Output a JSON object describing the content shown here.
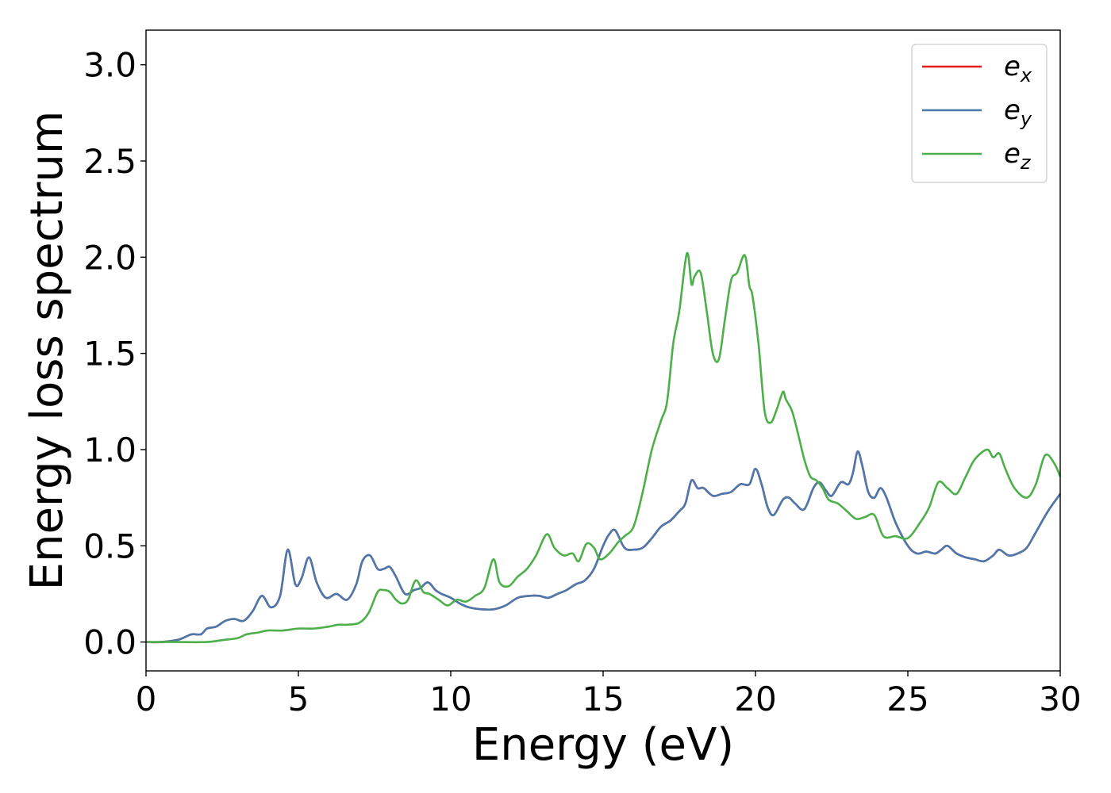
{
  "chart_data": {
    "type": "line",
    "title": "",
    "xlabel": "Energy (eV)",
    "ylabel": "Energy loss spectrum",
    "xlim": [
      0,
      30
    ],
    "ylim": [
      -0.15,
      3.18
    ],
    "xticks": [
      0,
      5,
      10,
      15,
      20,
      25,
      30
    ],
    "xtick_labels": [
      "0",
      "5",
      "10",
      "15",
      "20",
      "25",
      "30"
    ],
    "yticks": [
      0.0,
      0.5,
      1.0,
      1.5,
      2.0,
      2.5,
      3.0
    ],
    "ytick_labels": [
      "0.0",
      "0.5",
      "1.0",
      "1.5",
      "2.0",
      "2.5",
      "3.0"
    ],
    "grid": false,
    "legend_position": "top-right",
    "series": [
      {
        "name": "e_x",
        "legend_base": "e",
        "legend_sub": "x",
        "color": "#e41a1c",
        "x": [
          0,
          0.5,
          1.0,
          1.2,
          1.5,
          1.8,
          2.0,
          2.3,
          2.6,
          2.9,
          3.2,
          3.5,
          3.8,
          4.1,
          4.4,
          4.65,
          4.9,
          5.1,
          5.35,
          5.6,
          5.9,
          6.25,
          6.6,
          6.9,
          7.1,
          7.35,
          7.6,
          7.8,
          8.0,
          8.2,
          8.5,
          8.8,
          9.0,
          9.25,
          9.5,
          9.7,
          10.0,
          10.3,
          10.6,
          11.0,
          11.4,
          11.8,
          12.2,
          12.6,
          12.9,
          13.2,
          13.5,
          13.8,
          14.1,
          14.4,
          14.7,
          15.0,
          15.2,
          15.4,
          15.7,
          16.0,
          16.3,
          16.6,
          16.9,
          17.2,
          17.5,
          17.7,
          17.9,
          18.1,
          18.3,
          18.6,
          18.9,
          19.2,
          19.5,
          19.8,
          20.0,
          20.2,
          20.4,
          20.6,
          20.9,
          21.1,
          21.3,
          21.6,
          21.9,
          22.1,
          22.3,
          22.5,
          22.8,
          23.05,
          23.2,
          23.35,
          23.5,
          23.7,
          23.9,
          24.1,
          24.3,
          24.6,
          25.0,
          25.3,
          25.6,
          25.9,
          26.1,
          26.3,
          26.6,
          26.9,
          27.2,
          27.5,
          27.8,
          28.0,
          28.3,
          28.6,
          28.9,
          29.2,
          29.6,
          30.0
        ],
        "y": [
          0.0,
          0.0,
          0.01,
          0.02,
          0.04,
          0.04,
          0.07,
          0.08,
          0.11,
          0.12,
          0.11,
          0.16,
          0.24,
          0.18,
          0.24,
          0.48,
          0.3,
          0.33,
          0.44,
          0.31,
          0.23,
          0.25,
          0.22,
          0.3,
          0.42,
          0.45,
          0.38,
          0.38,
          0.39,
          0.34,
          0.25,
          0.27,
          0.28,
          0.31,
          0.27,
          0.25,
          0.23,
          0.2,
          0.18,
          0.17,
          0.17,
          0.19,
          0.23,
          0.24,
          0.24,
          0.23,
          0.25,
          0.27,
          0.3,
          0.32,
          0.38,
          0.5,
          0.56,
          0.58,
          0.49,
          0.48,
          0.49,
          0.54,
          0.6,
          0.63,
          0.68,
          0.72,
          0.84,
          0.8,
          0.8,
          0.76,
          0.77,
          0.78,
          0.82,
          0.82,
          0.9,
          0.82,
          0.7,
          0.66,
          0.74,
          0.75,
          0.72,
          0.69,
          0.8,
          0.83,
          0.79,
          0.76,
          0.83,
          0.82,
          0.88,
          0.99,
          0.92,
          0.78,
          0.75,
          0.8,
          0.75,
          0.62,
          0.5,
          0.46,
          0.47,
          0.46,
          0.48,
          0.5,
          0.46,
          0.44,
          0.43,
          0.42,
          0.45,
          0.48,
          0.45,
          0.46,
          0.49,
          0.57,
          0.68,
          0.77
        ]
      },
      {
        "name": "e_y",
        "legend_base": "e",
        "legend_sub": "y",
        "color": "#4b79ad",
        "x": [
          0,
          0.5,
          1.0,
          1.2,
          1.5,
          1.8,
          2.0,
          2.3,
          2.6,
          2.9,
          3.2,
          3.5,
          3.8,
          4.1,
          4.4,
          4.65,
          4.9,
          5.1,
          5.35,
          5.6,
          5.9,
          6.25,
          6.6,
          6.9,
          7.1,
          7.35,
          7.6,
          7.8,
          8.0,
          8.2,
          8.5,
          8.8,
          9.0,
          9.25,
          9.5,
          9.7,
          10.0,
          10.3,
          10.6,
          11.0,
          11.4,
          11.8,
          12.2,
          12.6,
          12.9,
          13.2,
          13.5,
          13.8,
          14.1,
          14.4,
          14.7,
          15.0,
          15.2,
          15.4,
          15.7,
          16.0,
          16.3,
          16.6,
          16.9,
          17.2,
          17.5,
          17.7,
          17.9,
          18.1,
          18.3,
          18.6,
          18.9,
          19.2,
          19.5,
          19.8,
          20.0,
          20.2,
          20.4,
          20.6,
          20.9,
          21.1,
          21.3,
          21.6,
          21.9,
          22.1,
          22.3,
          22.5,
          22.8,
          23.05,
          23.2,
          23.35,
          23.5,
          23.7,
          23.9,
          24.1,
          24.3,
          24.6,
          25.0,
          25.3,
          25.6,
          25.9,
          26.1,
          26.3,
          26.6,
          26.9,
          27.2,
          27.5,
          27.8,
          28.0,
          28.3,
          28.6,
          28.9,
          29.2,
          29.6,
          30.0
        ],
        "y": [
          0.0,
          0.0,
          0.01,
          0.02,
          0.04,
          0.04,
          0.07,
          0.08,
          0.11,
          0.12,
          0.11,
          0.16,
          0.24,
          0.18,
          0.24,
          0.48,
          0.3,
          0.33,
          0.44,
          0.31,
          0.23,
          0.25,
          0.22,
          0.3,
          0.42,
          0.45,
          0.38,
          0.38,
          0.39,
          0.34,
          0.25,
          0.27,
          0.28,
          0.31,
          0.27,
          0.25,
          0.23,
          0.2,
          0.18,
          0.17,
          0.17,
          0.19,
          0.23,
          0.24,
          0.24,
          0.23,
          0.25,
          0.27,
          0.3,
          0.32,
          0.38,
          0.5,
          0.56,
          0.58,
          0.49,
          0.48,
          0.49,
          0.54,
          0.6,
          0.63,
          0.68,
          0.72,
          0.84,
          0.8,
          0.8,
          0.76,
          0.77,
          0.78,
          0.82,
          0.82,
          0.9,
          0.82,
          0.7,
          0.66,
          0.74,
          0.75,
          0.72,
          0.69,
          0.8,
          0.83,
          0.79,
          0.76,
          0.83,
          0.82,
          0.88,
          0.99,
          0.92,
          0.78,
          0.75,
          0.8,
          0.75,
          0.62,
          0.5,
          0.46,
          0.47,
          0.46,
          0.48,
          0.5,
          0.46,
          0.44,
          0.43,
          0.42,
          0.45,
          0.48,
          0.45,
          0.46,
          0.49,
          0.57,
          0.68,
          0.77
        ]
      },
      {
        "name": "e_z",
        "legend_base": "e",
        "legend_sub": "z",
        "color": "#4daf4a",
        "x": [
          0,
          1.0,
          2.0,
          2.5,
          3.0,
          3.3,
          3.7,
          4.0,
          4.5,
          5.0,
          5.5,
          6.0,
          6.3,
          6.6,
          7.0,
          7.3,
          7.6,
          7.8,
          8.0,
          8.2,
          8.4,
          8.6,
          8.85,
          9.1,
          9.3,
          9.6,
          9.9,
          10.2,
          10.5,
          10.8,
          11.1,
          11.4,
          11.6,
          11.9,
          12.2,
          12.5,
          12.8,
          13.15,
          13.4,
          13.7,
          14.0,
          14.2,
          14.45,
          14.7,
          14.9,
          15.2,
          15.5,
          15.7,
          16.0,
          16.3,
          16.6,
          16.9,
          17.1,
          17.3,
          17.5,
          17.75,
          17.9,
          18.0,
          18.2,
          18.4,
          18.6,
          18.8,
          19.0,
          19.2,
          19.4,
          19.65,
          19.8,
          19.9,
          20.1,
          20.3,
          20.5,
          20.7,
          20.9,
          21.0,
          21.2,
          21.4,
          21.6,
          21.8,
          22.0,
          22.2,
          22.4,
          22.7,
          23.0,
          23.3,
          23.6,
          23.9,
          24.2,
          24.6,
          25.0,
          25.4,
          25.7,
          26.0,
          26.3,
          26.6,
          26.9,
          27.2,
          27.6,
          27.8,
          28.0,
          28.2,
          28.5,
          28.9,
          29.2,
          29.5,
          29.8,
          30.0
        ],
        "y": [
          0.0,
          0.0,
          0.0,
          0.01,
          0.02,
          0.04,
          0.05,
          0.06,
          0.06,
          0.07,
          0.07,
          0.08,
          0.09,
          0.09,
          0.1,
          0.15,
          0.26,
          0.27,
          0.26,
          0.22,
          0.2,
          0.22,
          0.32,
          0.26,
          0.25,
          0.22,
          0.19,
          0.22,
          0.21,
          0.24,
          0.28,
          0.43,
          0.31,
          0.29,
          0.34,
          0.38,
          0.45,
          0.56,
          0.49,
          0.45,
          0.46,
          0.42,
          0.51,
          0.49,
          0.43,
          0.46,
          0.52,
          0.55,
          0.6,
          0.78,
          1.0,
          1.15,
          1.25,
          1.55,
          1.72,
          2.02,
          1.86,
          1.9,
          1.92,
          1.72,
          1.5,
          1.47,
          1.68,
          1.88,
          1.92,
          2.01,
          1.85,
          1.8,
          1.55,
          1.2,
          1.14,
          1.21,
          1.3,
          1.26,
          1.2,
          1.08,
          0.95,
          0.86,
          0.84,
          0.8,
          0.74,
          0.72,
          0.68,
          0.64,
          0.65,
          0.66,
          0.55,
          0.55,
          0.54,
          0.62,
          0.7,
          0.83,
          0.8,
          0.77,
          0.86,
          0.95,
          1.0,
          0.96,
          0.98,
          0.9,
          0.8,
          0.75,
          0.82,
          0.97,
          0.93,
          0.86
        ]
      }
    ]
  }
}
